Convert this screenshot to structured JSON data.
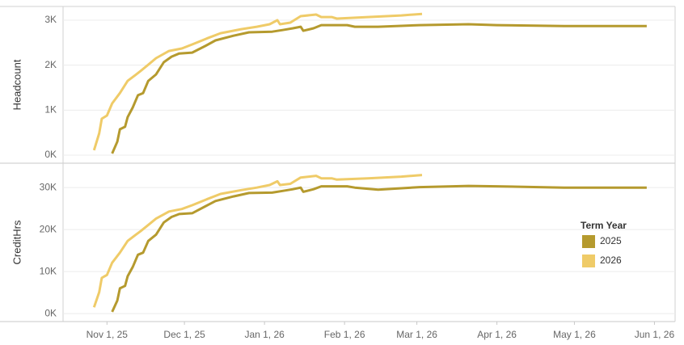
{
  "chart_data": [
    {
      "type": "line",
      "ylabel": "Headcount",
      "xlim": [
        "2025-10-15",
        "2026-06-09"
      ],
      "ylim": [
        -180,
        3305
      ],
      "yticks": [
        {
          "value": 0,
          "label": "0K"
        },
        {
          "value": 1000,
          "label": "1K"
        },
        {
          "value": 2000,
          "label": "2K"
        },
        {
          "value": 3000,
          "label": "3K"
        }
      ],
      "grid": true,
      "series": [
        {
          "color": "#b59a2e",
          "x": [
            "2025-11-03",
            "2025-11-05",
            "2025-11-06",
            "2025-11-08",
            "2025-11-09",
            "2025-11-11",
            "2025-11-13",
            "2025-11-15",
            "2025-11-17",
            "2025-11-20",
            "2025-11-23",
            "2025-11-26",
            "2025-11-29",
            "2025-12-04",
            "2025-12-09",
            "2025-12-13",
            "2025-12-20",
            "2025-12-26",
            "2026-01-04",
            "2026-01-08",
            "2026-01-12",
            "2026-01-15",
            "2026-01-16",
            "2026-01-20",
            "2026-01-23",
            "2026-02-02",
            "2026-02-05",
            "2026-02-14",
            "2026-03-02",
            "2026-03-21",
            "2026-04-01",
            "2026-04-27",
            "2026-05-29"
          ],
          "values": [
            35,
            300,
            575,
            630,
            845,
            1060,
            1330,
            1380,
            1650,
            1795,
            2065,
            2190,
            2260,
            2280,
            2425,
            2550,
            2655,
            2730,
            2745,
            2780,
            2820,
            2855,
            2765,
            2820,
            2890,
            2890,
            2855,
            2855,
            2890,
            2910,
            2890,
            2870,
            2870
          ]
        },
        {
          "color": "#efcb68",
          "x": [
            "2025-10-27",
            "2025-10-29",
            "2025-10-30",
            "2025-11-01",
            "2025-11-03",
            "2025-11-06",
            "2025-11-09",
            "2025-11-12",
            "2025-11-14",
            "2025-11-17",
            "2025-11-20",
            "2025-11-25",
            "2025-11-30",
            "2025-12-04",
            "2025-12-10",
            "2025-12-15",
            "2025-12-23",
            "2025-12-29",
            "2026-01-03",
            "2026-01-06",
            "2026-01-07",
            "2026-01-11",
            "2026-01-15",
            "2026-01-21",
            "2026-01-23",
            "2026-01-27",
            "2026-01-29",
            "2026-02-10",
            "2026-02-23",
            "2026-03-03"
          ],
          "values": [
            110,
            485,
            810,
            880,
            1150,
            1380,
            1650,
            1780,
            1870,
            2010,
            2155,
            2315,
            2370,
            2460,
            2600,
            2710,
            2800,
            2855,
            2910,
            3000,
            2910,
            2945,
            3090,
            3125,
            3070,
            3070,
            3035,
            3070,
            3105,
            3140
          ]
        }
      ]
    },
    {
      "type": "line",
      "ylabel": "CreditHrs",
      "xlim": [
        "2025-10-15",
        "2026-06-09"
      ],
      "xticks": [
        {
          "value": "2025-11-01",
          "label": "Nov 1, 25"
        },
        {
          "value": "2025-12-01",
          "label": "Dec 1, 25"
        },
        {
          "value": "2026-01-01",
          "label": "Jan 1, 26"
        },
        {
          "value": "2026-02-01",
          "label": "Feb 1, 26"
        },
        {
          "value": "2026-03-01",
          "label": "Mar 1, 26"
        },
        {
          "value": "2026-04-01",
          "label": "Apr 1, 26"
        },
        {
          "value": "2026-05-01",
          "label": "May 1, 26"
        },
        {
          "value": "2026-06-01",
          "label": "Jun 1, 26"
        }
      ],
      "ylim": [
        -1900,
        35800
      ],
      "yticks": [
        {
          "value": 0,
          "label": "0K"
        },
        {
          "value": 10000,
          "label": "10K"
        },
        {
          "value": 20000,
          "label": "20K"
        },
        {
          "value": 30000,
          "label": "30K"
        }
      ],
      "grid": true,
      "legend_title": "Term Year",
      "series": [
        {
          "name": "2025",
          "color": "#b59a2e",
          "x": [
            "2025-11-03",
            "2025-11-05",
            "2025-11-06",
            "2025-11-08",
            "2025-11-09",
            "2025-11-11",
            "2025-11-13",
            "2025-11-15",
            "2025-11-17",
            "2025-11-20",
            "2025-11-23",
            "2025-11-26",
            "2025-11-29",
            "2025-12-04",
            "2025-12-09",
            "2025-12-13",
            "2025-12-20",
            "2025-12-26",
            "2026-01-04",
            "2026-01-08",
            "2026-01-12",
            "2026-01-15",
            "2026-01-16",
            "2026-01-20",
            "2026-01-23",
            "2026-02-02",
            "2026-02-05",
            "2026-02-14",
            "2026-03-02",
            "2026-03-21",
            "2026-04-01",
            "2026-04-27",
            "2026-05-29"
          ],
          "values": [
            400,
            3100,
            6000,
            6600,
            8900,
            11100,
            14000,
            14500,
            17300,
            18800,
            21700,
            23000,
            23700,
            23900,
            25500,
            26800,
            27900,
            28700,
            28800,
            29200,
            29600,
            30000,
            29000,
            29600,
            30300,
            30300,
            30000,
            29500,
            30100,
            30400,
            30300,
            30000,
            30000
          ]
        },
        {
          "name": "2026",
          "color": "#efcb68",
          "x": [
            "2025-10-27",
            "2025-10-29",
            "2025-10-30",
            "2025-11-01",
            "2025-11-03",
            "2025-11-06",
            "2025-11-09",
            "2025-11-12",
            "2025-11-14",
            "2025-11-17",
            "2025-11-20",
            "2025-11-25",
            "2025-11-30",
            "2025-12-04",
            "2025-12-10",
            "2025-12-15",
            "2025-12-23",
            "2025-12-29",
            "2026-01-03",
            "2026-01-06",
            "2026-01-07",
            "2026-01-11",
            "2026-01-15",
            "2026-01-21",
            "2026-01-23",
            "2026-01-27",
            "2026-01-29",
            "2026-02-10",
            "2026-02-23",
            "2026-03-03"
          ],
          "values": [
            1500,
            5100,
            8500,
            9200,
            12100,
            14500,
            17300,
            18700,
            19600,
            21100,
            22600,
            24300,
            24900,
            25800,
            27300,
            28500,
            29400,
            30000,
            30600,
            31500,
            30600,
            30900,
            32400,
            32800,
            32200,
            32200,
            31900,
            32200,
            32600,
            33000
          ]
        }
      ]
    }
  ]
}
